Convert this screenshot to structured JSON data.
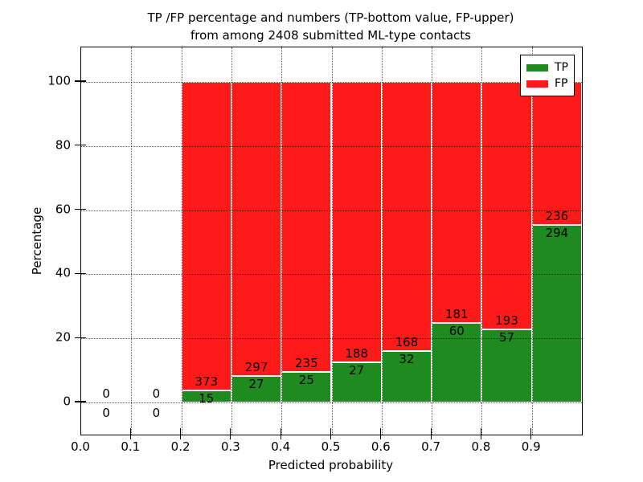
{
  "title": {
    "line1": "TP /FP percentage and numbers (TP-bottom value, FP-upper)",
    "line2": "from among 2408 submitted ML-type contacts"
  },
  "axes": {
    "ylabel": "Percentage",
    "xlabel": "Predicted probability",
    "ytick_labels": [
      "0",
      "20",
      "40",
      "60",
      "80",
      "100"
    ],
    "ytick_values": [
      0,
      20,
      40,
      60,
      80,
      100
    ],
    "xtick_labels": [
      "0.0",
      "0.1",
      "0.2",
      "0.3",
      "0.4",
      "0.5",
      "0.6",
      "0.7",
      "0.8",
      "0.9"
    ]
  },
  "legend": {
    "position": "upper right",
    "entries": [
      {
        "label": "TP",
        "color": "#1f8a1f"
      },
      {
        "label": "FP",
        "color": "#ff1a1a"
      }
    ]
  },
  "colors": {
    "tp_green": "#1f8a1f",
    "fp_red": "#ff1a1a",
    "grid": "rgba(0,0,0,0.65)",
    "background": "#ffffff",
    "bar_edge": "#ffffff"
  },
  "chart_data": {
    "type": "bar",
    "stacked": true,
    "normalized_to_percent": true,
    "title": "TP /FP percentage and numbers (TP-bottom value, FP-upper) from among 2408 submitted ML-type contacts",
    "total_contacts": 2408,
    "xlabel": "Predicted probability",
    "ylabel": "Percentage",
    "bin_width": 0.1,
    "bin_starts": [
      0.0,
      0.1,
      0.2,
      0.3,
      0.4,
      0.5,
      0.6,
      0.7,
      0.8,
      0.9
    ],
    "series": [
      {
        "name": "TP",
        "color": "#1f8a1f",
        "values": [
          0,
          0,
          15,
          27,
          25,
          27,
          32,
          60,
          57,
          294
        ]
      },
      {
        "name": "FP",
        "color": "#ff1a1a",
        "values": [
          0,
          0,
          373,
          297,
          235,
          188,
          168,
          181,
          193,
          236
        ]
      }
    ],
    "tp_percent_by_bin": [
      null,
      null,
      3.87,
      8.33,
      9.62,
      12.56,
      16.0,
      24.9,
      22.8,
      55.47
    ],
    "xlim": [
      0.0,
      1.0
    ],
    "ylim": [
      -10.5,
      110.8
    ],
    "yticks": [
      0,
      20,
      40,
      60,
      80,
      100
    ],
    "xticks": [
      0.0,
      0.1,
      0.2,
      0.3,
      0.4,
      0.5,
      0.6,
      0.7,
      0.8,
      0.9
    ],
    "grid": "dotted",
    "legend_position": "upper right"
  }
}
